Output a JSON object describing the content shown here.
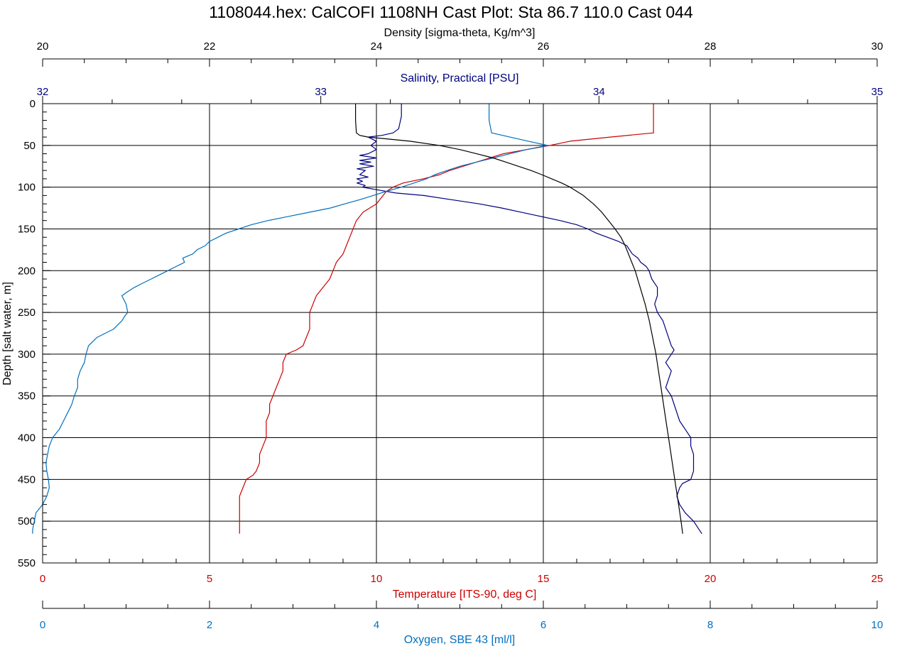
{
  "chart_data": {
    "type": "line",
    "title": "1108044.hex: CalCOFI 1108NH Cast Plot: Sta 86.7 110.0  Cast 044",
    "grid": true,
    "colors": {
      "temperature": "#cc0000",
      "salinity": "#00007f",
      "oxygen": "#0070c0",
      "density": "#000000"
    },
    "axes": {
      "depth": {
        "label": "Depth [salt water, m]",
        "range": [
          0,
          550
        ],
        "ticks": [
          "0",
          "50",
          "100",
          "150",
          "200",
          "250",
          "300",
          "350",
          "400",
          "450",
          "500",
          "550"
        ]
      },
      "density": {
        "label": "Density [sigma-theta, Kg/m^3]",
        "range": [
          20,
          30
        ],
        "ticks": [
          "20",
          "22",
          "24",
          "26",
          "28",
          "30"
        ]
      },
      "salinity": {
        "label": "Salinity, Practical [PSU]",
        "range": [
          32,
          35
        ],
        "ticks": [
          "32",
          "33",
          "34",
          "35"
        ]
      },
      "temperature": {
        "label": "Temperature [ITS-90, deg C]",
        "range": [
          0,
          25
        ],
        "ticks": [
          "0",
          "5",
          "10",
          "15",
          "20",
          "25"
        ]
      },
      "oxygen": {
        "label": "Oxygen, SBE 43 [ml/l]",
        "range": [
          0,
          10
        ],
        "ticks": [
          "0",
          "2",
          "4",
          "6",
          "8",
          "10"
        ]
      }
    },
    "series": [
      {
        "key": "temperature",
        "axis": "temperature",
        "depth": [
          0,
          20,
          35,
          40,
          45,
          50,
          55,
          60,
          65,
          70,
          75,
          80,
          85,
          90,
          95,
          100,
          105,
          110,
          120,
          130,
          140,
          150,
          160,
          170,
          180,
          190,
          200,
          210,
          220,
          230,
          240,
          250,
          260,
          270,
          280,
          290,
          295,
          300,
          310,
          320,
          330,
          340,
          350,
          360,
          370,
          380,
          390,
          400,
          410,
          420,
          430,
          440,
          445,
          450,
          460,
          470,
          480,
          490,
          500,
          510,
          515
        ],
        "values": [
          18.3,
          18.3,
          18.3,
          17.0,
          15.8,
          15.2,
          14.5,
          13.8,
          13.4,
          13.0,
          12.6,
          12.2,
          11.9,
          11.4,
          10.8,
          10.5,
          10.3,
          10.2,
          10.0,
          9.6,
          9.4,
          9.3,
          9.2,
          9.1,
          9.0,
          8.8,
          8.7,
          8.6,
          8.4,
          8.2,
          8.1,
          8.0,
          8.0,
          8.0,
          7.9,
          7.8,
          7.6,
          7.3,
          7.2,
          7.2,
          7.1,
          7.0,
          6.9,
          6.8,
          6.8,
          6.7,
          6.7,
          6.7,
          6.6,
          6.5,
          6.5,
          6.4,
          6.3,
          6.1,
          6.0,
          5.9,
          5.9,
          5.9,
          5.9,
          5.9,
          5.9
        ]
      },
      {
        "key": "salinity",
        "axis": "salinity",
        "depth": [
          0,
          15,
          30,
          35,
          38,
          40,
          45,
          50,
          55,
          60,
          62,
          65,
          68,
          70,
          72,
          75,
          78,
          80,
          85,
          88,
          90,
          93,
          95,
          98,
          100,
          103,
          107,
          110,
          115,
          120,
          125,
          130,
          135,
          140,
          145,
          150,
          155,
          160,
          165,
          170,
          175,
          180,
          185,
          190,
          195,
          200,
          210,
          220,
          230,
          240,
          250,
          260,
          270,
          280,
          290,
          295,
          300,
          310,
          320,
          330,
          340,
          350,
          360,
          370,
          380,
          390,
          400,
          410,
          420,
          430,
          440,
          450,
          455,
          460,
          470,
          480,
          490,
          500,
          510,
          515
        ],
        "values": [
          33.29,
          33.29,
          33.28,
          33.26,
          33.22,
          33.17,
          33.2,
          33.18,
          33.2,
          33.17,
          33.14,
          33.2,
          33.14,
          33.18,
          33.14,
          33.19,
          33.13,
          33.16,
          33.14,
          33.17,
          33.13,
          33.15,
          33.13,
          33.16,
          33.15,
          33.2,
          33.27,
          33.37,
          33.47,
          33.57,
          33.65,
          33.72,
          33.79,
          33.86,
          33.92,
          33.96,
          33.99,
          34.03,
          34.07,
          34.1,
          34.11,
          34.12,
          34.14,
          34.15,
          34.17,
          34.18,
          34.19,
          34.21,
          34.21,
          34.2,
          34.21,
          34.23,
          34.24,
          34.25,
          34.26,
          34.27,
          34.26,
          34.24,
          34.26,
          34.25,
          34.24,
          34.26,
          34.27,
          34.28,
          34.29,
          34.31,
          34.33,
          34.33,
          34.34,
          34.34,
          34.34,
          34.33,
          34.3,
          34.29,
          34.28,
          34.29,
          34.31,
          34.34,
          34.36,
          34.37
        ]
      },
      {
        "key": "oxygen",
        "axis": "oxygen",
        "depth": [
          0,
          20,
          35,
          40,
          45,
          50,
          55,
          60,
          65,
          70,
          75,
          80,
          85,
          90,
          95,
          100,
          105,
          110,
          115,
          120,
          125,
          130,
          135,
          140,
          145,
          150,
          155,
          160,
          165,
          170,
          175,
          180,
          185,
          190,
          195,
          200,
          205,
          210,
          215,
          220,
          225,
          230,
          240,
          250,
          255,
          260,
          265,
          270,
          275,
          280,
          290,
          300,
          310,
          320,
          330,
          340,
          350,
          360,
          370,
          380,
          390,
          400,
          410,
          420,
          430,
          440,
          450,
          460,
          470,
          480,
          490,
          500,
          510,
          515
        ],
        "values": [
          5.35,
          5.35,
          5.38,
          5.6,
          5.82,
          6.05,
          5.8,
          5.6,
          5.4,
          5.2,
          5.0,
          4.85,
          4.7,
          4.6,
          4.45,
          4.3,
          4.12,
          3.96,
          3.8,
          3.62,
          3.45,
          3.2,
          2.95,
          2.7,
          2.5,
          2.35,
          2.2,
          2.1,
          2.0,
          1.95,
          1.85,
          1.8,
          1.68,
          1.7,
          1.6,
          1.5,
          1.4,
          1.3,
          1.2,
          1.1,
          1.02,
          0.95,
          1.0,
          1.02,
          0.98,
          0.95,
          0.9,
          0.85,
          0.75,
          0.65,
          0.55,
          0.52,
          0.5,
          0.45,
          0.42,
          0.42,
          0.38,
          0.35,
          0.3,
          0.25,
          0.2,
          0.12,
          0.08,
          0.06,
          0.04,
          0.05,
          0.07,
          0.08,
          0.05,
          0.0,
          -0.08,
          -0.1,
          -0.12,
          -0.12
        ]
      },
      {
        "key": "density",
        "axis": "density",
        "depth": [
          0,
          20,
          35,
          38,
          40,
          42,
          45,
          50,
          55,
          60,
          65,
          70,
          75,
          80,
          85,
          90,
          95,
          100,
          105,
          110,
          115,
          120,
          125,
          130,
          135,
          140,
          145,
          150,
          160,
          170,
          180,
          190,
          200,
          220,
          240,
          260,
          280,
          300,
          320,
          340,
          360,
          380,
          400,
          420,
          440,
          460,
          480,
          500,
          515
        ],
        "values": [
          23.75,
          23.75,
          23.76,
          23.8,
          23.9,
          24.1,
          24.4,
          24.75,
          25.0,
          25.2,
          25.4,
          25.55,
          25.7,
          25.85,
          25.98,
          26.1,
          26.22,
          26.32,
          26.4,
          26.48,
          26.54,
          26.6,
          26.65,
          26.7,
          26.74,
          26.78,
          26.82,
          26.86,
          26.93,
          26.98,
          27.02,
          27.06,
          27.1,
          27.16,
          27.22,
          27.27,
          27.31,
          27.35,
          27.38,
          27.41,
          27.44,
          27.47,
          27.5,
          27.53,
          27.56,
          27.59,
          27.62,
          27.65,
          27.67
        ]
      }
    ]
  }
}
